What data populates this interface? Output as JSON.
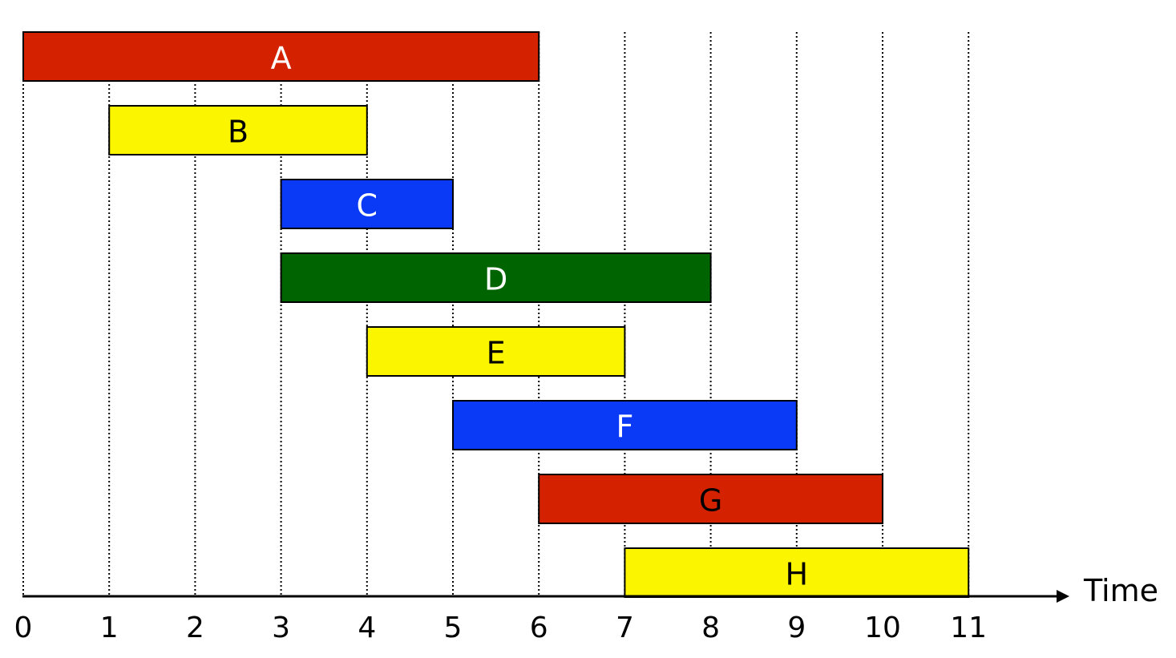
{
  "chart_data": {
    "type": "gantt",
    "xlabel": "Time",
    "xlim": [
      0,
      11
    ],
    "x_ticks": [
      0,
      1,
      2,
      3,
      4,
      5,
      6,
      7,
      8,
      9,
      10,
      11
    ],
    "tick_labels": [
      "0",
      "1",
      "2",
      "3",
      "4",
      "5",
      "6",
      "7",
      "8",
      "9",
      "10",
      "11"
    ],
    "gridlines": "dotted vertical at each integer tick",
    "tasks": [
      {
        "label": "A",
        "start": 0,
        "end": 6,
        "color": "#d42200",
        "text_color": "#ffffff"
      },
      {
        "label": "B",
        "start": 1,
        "end": 4,
        "color": "#fcf500",
        "text_color": "#000000"
      },
      {
        "label": "C",
        "start": 3,
        "end": 5,
        "color": "#0a3af5",
        "text_color": "#ffffff"
      },
      {
        "label": "D",
        "start": 3,
        "end": 8,
        "color": "#006400",
        "text_color": "#ffffff"
      },
      {
        "label": "E",
        "start": 4,
        "end": 7,
        "color": "#fcf500",
        "text_color": "#000000"
      },
      {
        "label": "F",
        "start": 5,
        "end": 9,
        "color": "#0a3af5",
        "text_color": "#ffffff"
      },
      {
        "label": "G",
        "start": 6,
        "end": 10,
        "color": "#d42200",
        "text_color": "#000000"
      },
      {
        "label": "H",
        "start": 7,
        "end": 11,
        "color": "#fcf500",
        "text_color": "#000000"
      }
    ]
  }
}
